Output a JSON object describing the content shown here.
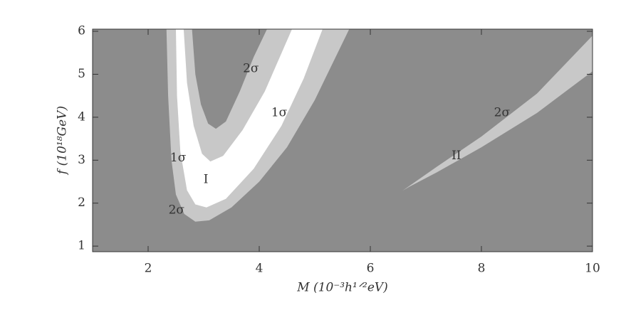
{
  "chart_data": {
    "type": "contour",
    "x_label": "M (10⁻³h¹ᐟ²eV)",
    "y_label": "f (10¹⁸GeV)",
    "xlim": [
      1,
      10
    ],
    "ylim": [
      0.87,
      6.05
    ],
    "xticks": [
      2,
      4,
      6,
      8,
      10
    ],
    "yticks": [
      1,
      2,
      3,
      4,
      5,
      6
    ],
    "background": "#8c8c8c",
    "regions": [
      {
        "color": "#c8c8c8",
        "x": [
          2.33,
          2.36,
          2.42,
          2.5,
          2.65,
          2.85,
          3.1,
          3.5,
          4,
          4.5,
          5,
          5.3,
          5.62
        ],
        "y": [
          6.05,
          4.5,
          3,
          2.2,
          1.75,
          1.57,
          1.6,
          1.9,
          2.5,
          3.3,
          4.4,
          5.2,
          6.05
        ]
      },
      {
        "color": "#ffffff",
        "x": [
          2.5,
          2.52,
          2.58,
          2.7,
          2.85,
          3.05,
          3.4,
          3.9,
          4.4,
          4.8,
          5.14
        ],
        "y": [
          6.05,
          4.5,
          3.2,
          2.3,
          1.97,
          1.9,
          2.1,
          2.8,
          3.8,
          4.9,
          6.05
        ]
      },
      {
        "color": "#c8c8c8",
        "x": [
          2.64,
          2.7,
          2.82,
          2.97,
          3.12,
          3.35,
          3.7,
          4.1,
          4.59
        ],
        "y": [
          6.05,
          4.8,
          3.8,
          3.15,
          2.97,
          3.1,
          3.7,
          4.6,
          6.05
        ]
      },
      {
        "color": "#8c8c8c",
        "x": [
          2.79,
          2.85,
          2.95,
          3.08,
          3.22,
          3.4,
          3.65,
          3.9,
          4.14
        ],
        "y": [
          6.05,
          5,
          4.3,
          3.85,
          3.73,
          3.9,
          4.6,
          5.4,
          6.05
        ]
      },
      {
        "color": "#c8c8c8",
        "x": [
          6.58,
          7.2,
          8,
          9,
          10,
          10,
          9,
          8,
          7.2,
          6.7
        ],
        "y": [
          2.29,
          2.85,
          3.55,
          4.55,
          5.9,
          5.07,
          4.1,
          3.3,
          2.72,
          2.38
        ]
      }
    ],
    "annotations": [
      {
        "text": "2σ",
        "x": 3.85,
        "y": 5.12
      },
      {
        "text": "1σ",
        "x": 4.36,
        "y": 4.1
      },
      {
        "text": "1σ",
        "x": 2.54,
        "y": 3.05
      },
      {
        "text": "I",
        "x": 3.04,
        "y": 2.54
      },
      {
        "text": "2σ",
        "x": 2.51,
        "y": 1.83
      },
      {
        "text": "II",
        "x": 7.55,
        "y": 3.1
      },
      {
        "text": "2σ",
        "x": 8.37,
        "y": 4.1
      }
    ]
  }
}
